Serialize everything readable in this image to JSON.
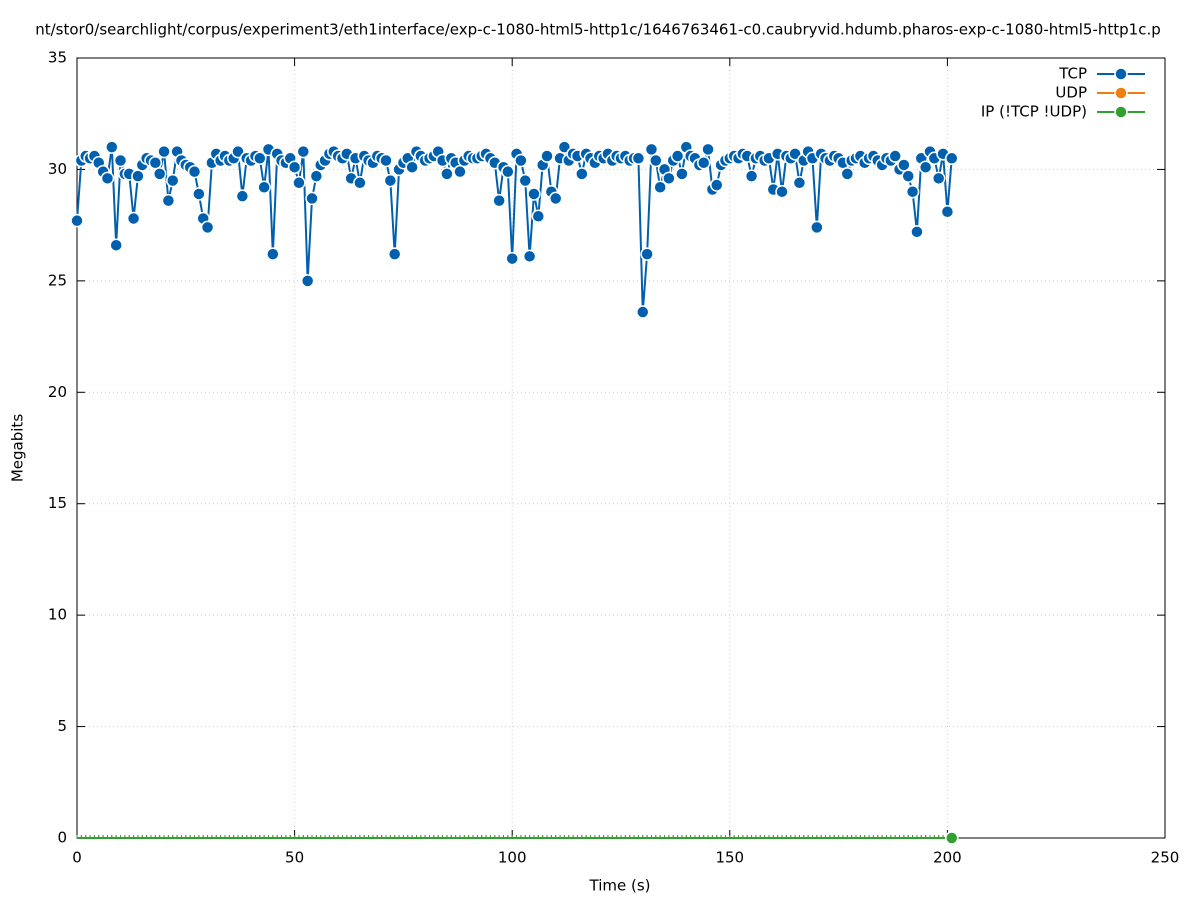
{
  "chart_data": {
    "type": "line",
    "title": "nt/stor0/searchlight/corpus/experiment3/eth1interface/exp-c-1080-html5-http1c/1646763461-c0.caubryvid.hdumb.pharos-exp-c-1080-html5-http1c.p",
    "x_label": "Time (s)",
    "y_label": "Megabits",
    "x": [
      0,
      1,
      2,
      3,
      4,
      5,
      6,
      7,
      8,
      9,
      10,
      11,
      12,
      13,
      14,
      15,
      16,
      17,
      18,
      19,
      20,
      21,
      22,
      23,
      24,
      25,
      26,
      27,
      28,
      29,
      30,
      31,
      32,
      33,
      34,
      35,
      36,
      37,
      38,
      39,
      40,
      41,
      42,
      43,
      44,
      45,
      46,
      47,
      48,
      49,
      50,
      51,
      52,
      53,
      54,
      55,
      56,
      57,
      58,
      59,
      60,
      61,
      62,
      63,
      64,
      65,
      66,
      67,
      68,
      69,
      70,
      71,
      72,
      73,
      74,
      75,
      76,
      77,
      78,
      79,
      80,
      81,
      82,
      83,
      84,
      85,
      86,
      87,
      88,
      89,
      90,
      91,
      92,
      93,
      94,
      95,
      96,
      97,
      98,
      99,
      100,
      101,
      102,
      103,
      104,
      105,
      106,
      107,
      108,
      109,
      110,
      111,
      112,
      113,
      114,
      115,
      116,
      117,
      118,
      119,
      120,
      121,
      122,
      123,
      124,
      125,
      126,
      127,
      128,
      129,
      130,
      131,
      132,
      133,
      134,
      135,
      136,
      137,
      138,
      139,
      140,
      141,
      142,
      143,
      144,
      145,
      146,
      147,
      148,
      149,
      150,
      151,
      152,
      153,
      154,
      155,
      156,
      157,
      158,
      159,
      160,
      161,
      162,
      163,
      164,
      165,
      166,
      167,
      168,
      169,
      170,
      171,
      172,
      173,
      174,
      175,
      176,
      177,
      178,
      179,
      180,
      181,
      182,
      183,
      184,
      185,
      186,
      187,
      188,
      189,
      190,
      191,
      192,
      193,
      194,
      195,
      196,
      197,
      198,
      199,
      200,
      201
    ],
    "series": [
      {
        "name": "TCP",
        "color": "#0060ad",
        "values": [
          27.7,
          30.4,
          30.6,
          30.5,
          30.6,
          30.3,
          29.9,
          29.6,
          31.0,
          26.6,
          30.4,
          29.8,
          29.8,
          27.8,
          29.7,
          30.2,
          30.5,
          30.4,
          30.3,
          29.8,
          30.8,
          28.6,
          29.5,
          30.8,
          30.4,
          30.2,
          30.1,
          29.9,
          28.9,
          27.8,
          27.4,
          30.3,
          30.7,
          30.4,
          30.6,
          30.4,
          30.5,
          30.8,
          28.8,
          30.5,
          30.4,
          30.6,
          30.5,
          29.2,
          30.9,
          26.2,
          30.7,
          30.4,
          30.3,
          30.5,
          30.1,
          29.4,
          30.8,
          25.0,
          28.7,
          29.7,
          30.2,
          30.4,
          30.7,
          30.8,
          30.6,
          30.5,
          30.7,
          29.6,
          30.5,
          29.4,
          30.6,
          30.4,
          30.3,
          30.6,
          30.5,
          30.4,
          29.5,
          26.2,
          30.0,
          30.3,
          30.5,
          30.1,
          30.8,
          30.6,
          30.4,
          30.5,
          30.6,
          30.8,
          30.4,
          29.8,
          30.5,
          30.3,
          29.9,
          30.4,
          30.6,
          30.5,
          30.5,
          30.6,
          30.7,
          30.5,
          30.3,
          28.6,
          30.1,
          29.9,
          26.0,
          30.7,
          30.4,
          29.5,
          26.1,
          28.9,
          27.9,
          30.2,
          30.6,
          29.0,
          28.7,
          30.5,
          31.0,
          30.4,
          30.7,
          30.6,
          29.8,
          30.7,
          30.5,
          30.3,
          30.6,
          30.5,
          30.7,
          30.4,
          30.6,
          30.5,
          30.6,
          30.4,
          30.5,
          30.5,
          23.6,
          26.2,
          30.9,
          30.4,
          29.2,
          30.0,
          29.6,
          30.4,
          30.6,
          29.8,
          31.0,
          30.6,
          30.5,
          30.2,
          30.3,
          30.9,
          29.1,
          29.3,
          30.2,
          30.4,
          30.5,
          30.6,
          30.5,
          30.7,
          30.6,
          29.7,
          30.5,
          30.6,
          30.4,
          30.5,
          29.1,
          30.7,
          29.0,
          30.6,
          30.5,
          30.7,
          29.4,
          30.4,
          30.8,
          30.5,
          27.4,
          30.7,
          30.5,
          30.4,
          30.6,
          30.5,
          30.3,
          29.8,
          30.4,
          30.5,
          30.6,
          30.3,
          30.5,
          30.6,
          30.4,
          30.2,
          30.5,
          30.4,
          30.6,
          30.0,
          30.2,
          29.7,
          29.0,
          27.2,
          30.5,
          30.1,
          30.8,
          30.5,
          29.6,
          30.7,
          28.1,
          30.5
        ]
      },
      {
        "name": "UDP",
        "color": "#f07f10",
        "values": [
          0,
          0,
          0,
          0,
          0,
          0,
          0,
          0,
          0,
          0,
          0,
          0,
          0,
          0,
          0,
          0,
          0,
          0,
          0,
          0,
          0,
          0,
          0,
          0,
          0,
          0,
          0,
          0,
          0,
          0,
          0,
          0,
          0,
          0,
          0,
          0,
          0,
          0,
          0,
          0,
          0,
          0,
          0,
          0,
          0,
          0,
          0,
          0,
          0,
          0,
          0,
          0,
          0,
          0,
          0,
          0,
          0,
          0,
          0,
          0,
          0,
          0,
          0,
          0,
          0,
          0,
          0,
          0,
          0,
          0,
          0,
          0,
          0,
          0,
          0,
          0,
          0,
          0,
          0,
          0,
          0,
          0,
          0,
          0,
          0,
          0,
          0,
          0,
          0,
          0,
          0,
          0,
          0,
          0,
          0,
          0,
          0,
          0,
          0,
          0,
          0,
          0,
          0,
          0,
          0,
          0,
          0,
          0,
          0,
          0,
          0,
          0,
          0,
          0,
          0,
          0,
          0,
          0,
          0,
          0,
          0,
          0,
          0,
          0,
          0,
          0,
          0,
          0,
          0,
          0,
          0,
          0,
          0,
          0,
          0,
          0,
          0,
          0,
          0,
          0,
          0,
          0,
          0,
          0,
          0,
          0,
          0,
          0,
          0,
          0,
          0,
          0,
          0,
          0,
          0,
          0,
          0,
          0,
          0,
          0,
          0,
          0,
          0,
          0,
          0,
          0,
          0,
          0,
          0,
          0,
          0,
          0,
          0,
          0,
          0,
          0,
          0,
          0,
          0,
          0,
          0,
          0,
          0,
          0,
          0,
          0,
          0,
          0,
          0,
          0,
          0,
          0,
          0,
          0,
          0,
          0,
          0,
          0,
          0,
          0,
          0,
          0
        ]
      },
      {
        "name": "IP (!TCP  !UDP)",
        "color": "#30a030",
        "values": [
          0,
          0,
          0,
          0,
          0,
          0,
          0,
          0,
          0,
          0,
          0,
          0,
          0,
          0,
          0,
          0,
          0,
          0,
          0,
          0,
          0,
          0,
          0,
          0,
          0,
          0,
          0,
          0,
          0,
          0,
          0,
          0,
          0,
          0,
          0,
          0,
          0,
          0,
          0,
          0,
          0,
          0,
          0,
          0,
          0,
          0,
          0,
          0,
          0,
          0,
          0,
          0,
          0,
          0,
          0,
          0,
          0,
          0,
          0,
          0,
          0,
          0,
          0,
          0,
          0,
          0,
          0,
          0,
          0,
          0,
          0,
          0,
          0,
          0,
          0,
          0,
          0,
          0,
          0,
          0,
          0,
          0,
          0,
          0,
          0,
          0,
          0,
          0,
          0,
          0,
          0,
          0,
          0,
          0,
          0,
          0,
          0,
          0,
          0,
          0,
          0,
          0,
          0,
          0,
          0,
          0,
          0,
          0,
          0,
          0,
          0,
          0,
          0,
          0,
          0,
          0,
          0,
          0,
          0,
          0,
          0,
          0,
          0,
          0,
          0,
          0,
          0,
          0,
          0,
          0,
          0,
          0,
          0,
          0,
          0,
          0,
          0,
          0,
          0,
          0,
          0,
          0,
          0,
          0,
          0,
          0,
          0,
          0,
          0,
          0,
          0,
          0,
          0,
          0,
          0,
          0,
          0,
          0,
          0,
          0,
          0,
          0,
          0,
          0,
          0,
          0,
          0,
          0,
          0,
          0,
          0,
          0,
          0,
          0,
          0,
          0,
          0,
          0,
          0,
          0,
          0,
          0,
          0,
          0,
          0,
          0,
          0,
          0,
          0,
          0,
          0,
          0,
          0,
          0,
          0,
          0,
          0,
          0,
          0,
          0,
          0,
          0
        ]
      }
    ],
    "xlim": [
      0,
      250
    ],
    "xticks": [
      0,
      50,
      100,
      150,
      200,
      250
    ],
    "ylim": [
      0,
      35
    ],
    "yticks": [
      0,
      5,
      10,
      15,
      20,
      25,
      30,
      35
    ],
    "grid": true,
    "legend": "top-right"
  }
}
